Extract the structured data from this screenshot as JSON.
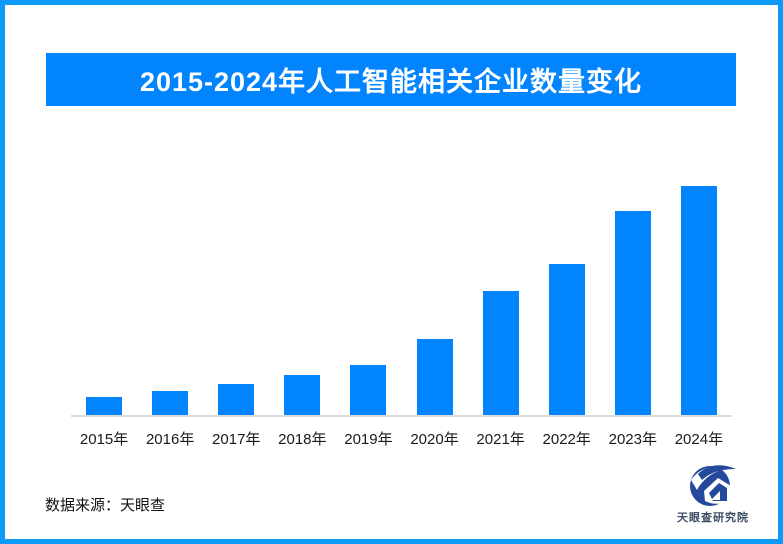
{
  "title": "2015-2024年人工智能相关企业数量变化",
  "footer": {
    "source_label": "数据来源：天眼查",
    "logo_text": "天眼查研究院"
  },
  "colors": {
    "border_blue": "#0D9AF8",
    "banner_blue": "#0284FE",
    "bar_blue": "#0284FE",
    "axis_gray": "#DBDBDB",
    "logo_navy": "#24489B",
    "logo_text_color": "#3D4D63"
  },
  "chart_data": {
    "type": "bar",
    "title": "2015-2024年人工智能相关企业数量变化",
    "categories": [
      "2015年",
      "2016年",
      "2017年",
      "2018年",
      "2019年",
      "2020年",
      "2021年",
      "2022年",
      "2023年",
      "2024年"
    ],
    "values": [
      8,
      10.5,
      13.5,
      17.5,
      22,
      33,
      54,
      66,
      89,
      100
    ],
    "value_unit": "relative index (tallest bar 2024 = 100; chart shows no y-axis or data labels)",
    "xlabel": "",
    "ylabel": "",
    "ylim": [
      0,
      100
    ],
    "grid": false,
    "legend": false,
    "bar_color": "#0284FE",
    "axis_line_color": "#DBDBDB"
  }
}
